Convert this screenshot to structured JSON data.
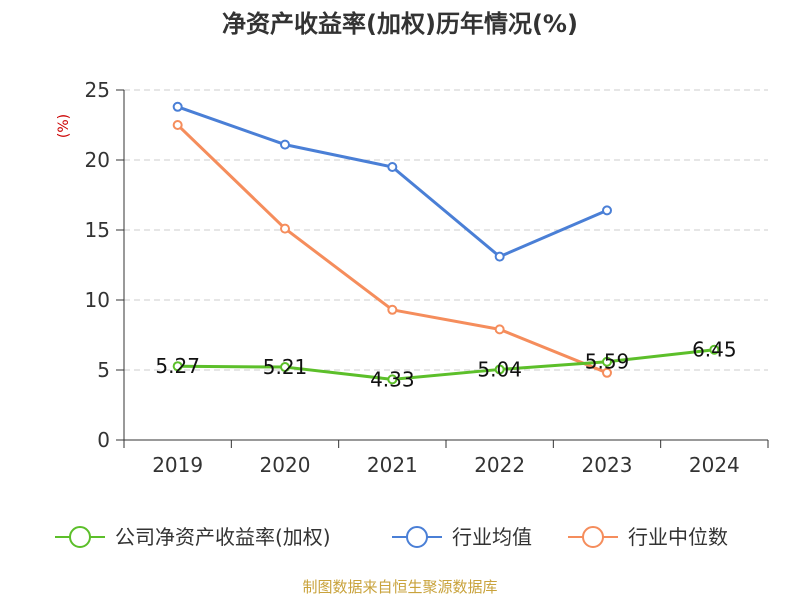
{
  "title": "净资产收益率(加权)历年情况(%)",
  "footer": "制图数据来自恒生聚源数据库",
  "colors": {
    "company": "#5cbf2a",
    "industry_avg": "#4a7fd6",
    "industry_median": "#f58d5c",
    "footer": "#c9a33c",
    "axis": "#333333",
    "grid": "#cccccc",
    "ylabel": "#cc0000"
  },
  "chart_data": {
    "type": "line",
    "title": "净资产收益率(加权)历年情况(%)",
    "xlabel": "",
    "ylabel": "(%)",
    "categories": [
      "2019",
      "2020",
      "2021",
      "2022",
      "2023",
      "2024"
    ],
    "ylim": [
      0,
      25
    ],
    "yticks": [
      0,
      5,
      10,
      15,
      20,
      25
    ],
    "grid": "horizontal dashed",
    "legend_position": "bottom",
    "series": [
      {
        "name": "公司净资产收益率(加权)",
        "values": [
          5.27,
          5.21,
          4.33,
          5.04,
          5.59,
          6.45
        ],
        "labels": [
          "5.27",
          "5.21",
          "4.33",
          "5.04",
          "5.59",
          "6.45"
        ]
      },
      {
        "name": "行业均值",
        "values": [
          23.8,
          21.1,
          19.5,
          13.1,
          16.4,
          null
        ]
      },
      {
        "name": "行业中位数",
        "values": [
          22.5,
          15.1,
          9.3,
          7.9,
          4.8,
          null
        ]
      }
    ]
  }
}
